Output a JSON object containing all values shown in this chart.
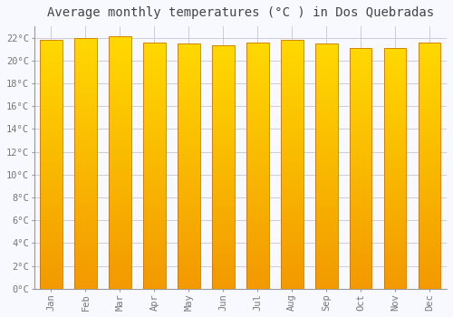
{
  "title": "Average monthly temperatures (°C ) in Dos Quebradas",
  "months": [
    "Jan",
    "Feb",
    "Mar",
    "Apr",
    "May",
    "Jun",
    "Jul",
    "Aug",
    "Sep",
    "Oct",
    "Nov",
    "Dec"
  ],
  "values": [
    21.8,
    22.0,
    22.1,
    21.6,
    21.5,
    21.3,
    21.6,
    21.8,
    21.5,
    21.1,
    21.1,
    21.6
  ],
  "bar_color": "#FFB300",
  "bar_edge_color": "#E08000",
  "background_color": "#F8F8FF",
  "grid_color": "#CCCCDD",
  "text_color": "#777777",
  "ylim": [
    0,
    23
  ],
  "ytick_step": 2,
  "title_fontsize": 10,
  "tick_fontsize": 7.5,
  "bar_width": 0.65
}
